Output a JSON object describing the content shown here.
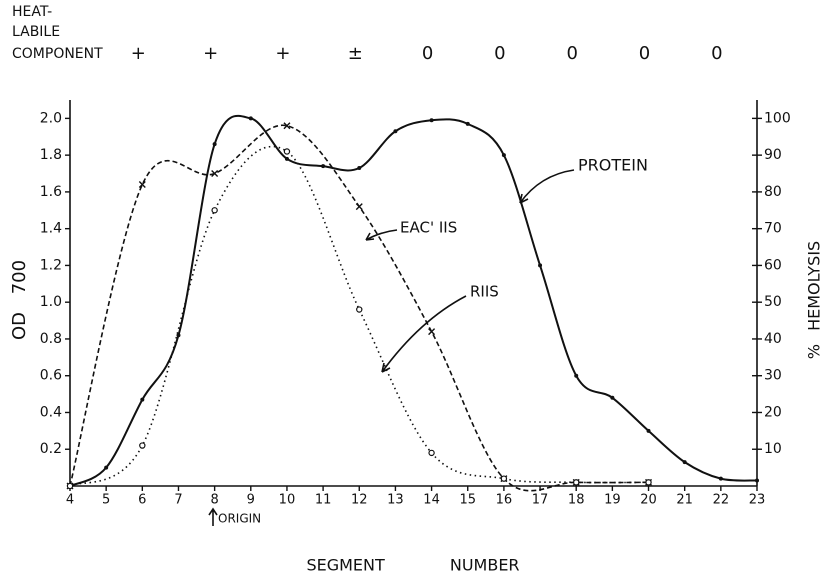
{
  "chart_data": {
    "type": "line",
    "header_label": [
      "HEAT-",
      "LABILE",
      "COMPONENT"
    ],
    "header_marks": [
      "+",
      "+",
      "+",
      "±",
      "0",
      "0",
      "0",
      "0",
      "0"
    ],
    "x_label": "SEGMENT NUMBER",
    "y_label": "OD 700",
    "y2_label": "% HEMOLYSIS",
    "xlim": [
      4,
      23
    ],
    "xticks": [
      4,
      5,
      6,
      7,
      8,
      9,
      10,
      11,
      12,
      13,
      14,
      15,
      16,
      17,
      18,
      19,
      20,
      21,
      22,
      23
    ],
    "ylim": [
      0,
      2.1
    ],
    "yticks": [
      0.2,
      0.4,
      0.6,
      0.8,
      {
        "value": 1,
        "label": "1.0"
      },
      1.2,
      1.4,
      1.6,
      1.8,
      {
        "value": 2,
        "label": "2.0"
      }
    ],
    "y2lim": [
      0,
      105
    ],
    "y2ticks": [
      10,
      20,
      30,
      40,
      50,
      60,
      70,
      80,
      90,
      100
    ],
    "series": [
      {
        "name": "PROTEIN",
        "color": "#111111",
        "style": "solid",
        "marker": "dot",
        "axis": "y",
        "x": [
          4,
          5,
          6,
          7,
          8,
          9,
          10,
          11,
          12,
          13,
          14,
          15,
          16,
          17,
          18,
          19,
          20,
          21,
          22,
          23
        ],
        "values": [
          0,
          0.1,
          0.47,
          0.82,
          1.86,
          2.0,
          1.78,
          1.74,
          1.73,
          1.93,
          1.99,
          1.97,
          1.8,
          1.2,
          0.6,
          0.48,
          0.3,
          0.13,
          0.04,
          0.03
        ]
      },
      {
        "name": "EAC' IIS",
        "color": "#111111",
        "style": "dashed",
        "marker": "cross",
        "axis": "y2",
        "x": [
          4,
          6,
          8,
          10,
          12,
          14,
          16,
          18,
          20
        ],
        "values": [
          0,
          82,
          85,
          98,
          76,
          42,
          2,
          1,
          1
        ]
      },
      {
        "name": "RIIS",
        "color": "#111111",
        "style": "dotted",
        "marker": "circle",
        "axis": "y2",
        "x": [
          4,
          6,
          8,
          10,
          12,
          14,
          16,
          18,
          20
        ],
        "values": [
          0,
          11,
          75,
          91,
          48,
          9,
          2,
          1,
          1
        ]
      }
    ],
    "origin_label": "ORIGIN"
  }
}
